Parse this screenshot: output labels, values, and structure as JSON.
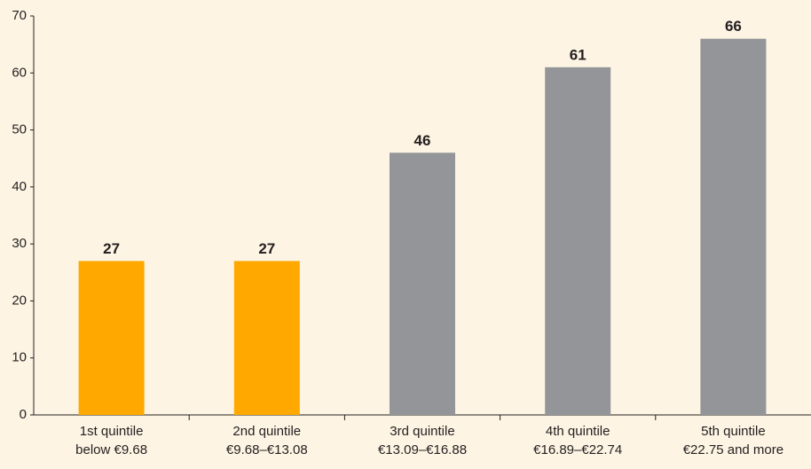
{
  "chart_data": {
    "type": "bar",
    "categories": [
      [
        "1st quintile",
        "below €9.68"
      ],
      [
        "2nd quintile",
        "€9.68–€13.08"
      ],
      [
        "3rd  quintile",
        "€13.09–€16.88"
      ],
      [
        "4th quintile",
        "€16.89–€22.74"
      ],
      [
        "5th quintile",
        "€22.75 and more"
      ]
    ],
    "values": [
      27,
      27,
      46,
      61,
      66
    ],
    "colors": [
      "#ffa800",
      "#ffa800",
      "#939598",
      "#939598",
      "#939598"
    ],
    "ylim": [
      0,
      70
    ],
    "yticks": [
      0,
      10,
      20,
      30,
      40,
      50,
      60,
      70
    ],
    "grid": false
  }
}
